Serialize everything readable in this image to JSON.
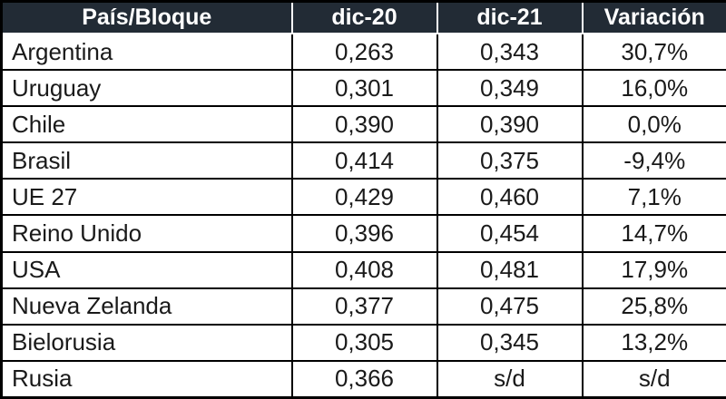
{
  "chart_data": {
    "type": "table",
    "columns": [
      "País/Bloque",
      "dic-20",
      "dic-21",
      "Variación"
    ],
    "rows": [
      [
        "Argentina",
        "0,263",
        "0,343",
        "30,7%"
      ],
      [
        "Uruguay",
        "0,301",
        "0,349",
        "16,0%"
      ],
      [
        "Chile",
        "0,390",
        "0,390",
        "0,0%"
      ],
      [
        "Brasil",
        "0,414",
        "0,375",
        "-9,4%"
      ],
      [
        "UE 27",
        "0,429",
        "0,460",
        "7,1%"
      ],
      [
        "Reino Unido",
        "0,396",
        "0,454",
        "14,7%"
      ],
      [
        "USA",
        "0,408",
        "0,481",
        "17,9%"
      ],
      [
        "Nueva Zelanda",
        "0,377",
        "0,475",
        "25,8%"
      ],
      [
        "Bielorusia",
        "0,305",
        "0,345",
        "13,2%"
      ],
      [
        "Rusia",
        "0,366",
        "s/d",
        "s/d"
      ]
    ],
    "numeric": {
      "dic20": [
        0.263,
        0.301,
        0.39,
        0.414,
        0.429,
        0.396,
        0.408,
        0.377,
        0.305,
        0.366
      ],
      "dic21": [
        0.343,
        0.349,
        0.39,
        0.375,
        0.46,
        0.454,
        0.481,
        0.475,
        0.345,
        null
      ],
      "variacion_pct": [
        30.7,
        16.0,
        0.0,
        -9.4,
        7.1,
        14.7,
        17.9,
        25.8,
        13.2,
        null
      ],
      "no_data_label": "s/d"
    },
    "layout": {
      "header_align": "center",
      "name_column_align": "left",
      "value_columns_align": "center"
    }
  },
  "colors": {
    "header_bg": "#222b35",
    "header_text": "#ffffff",
    "header_separator": "#ffffff",
    "body_bg": "#ffffff",
    "body_text": "#1a1a1a",
    "border": "#000000"
  }
}
